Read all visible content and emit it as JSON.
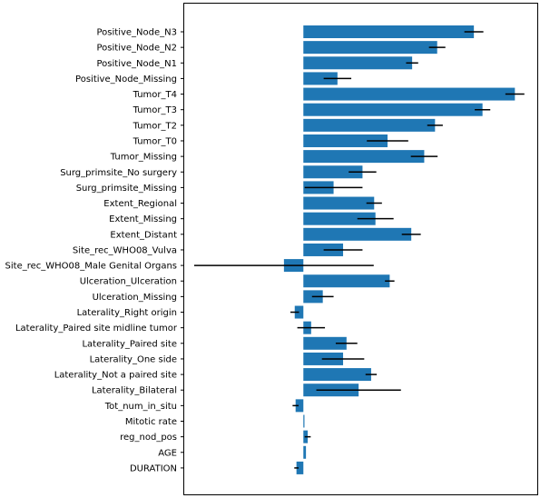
{
  "chart_data": {
    "type": "bar",
    "orientation": "horizontal",
    "title": "",
    "xlabel": "",
    "ylabel": "",
    "x_tick_labels_shown": false,
    "bar_color": "#1f77b4",
    "errorbar_color": "#000000",
    "xlim": [
      -2.76,
      5.44
    ],
    "categories": [
      "Positive_Node_N3",
      "Positive_Node_N2",
      "Positive_Node_N1",
      "Positive_Node_Missing",
      "Tumor_T4",
      "Tumor_T3",
      "Tumor_T2",
      "Tumor_T0",
      "Tumor_Missing",
      "Surg_primsite_No surgery",
      "Surg_primsite_Missing",
      "Extent_Regional",
      "Extent_Missing",
      "Extent_Distant",
      "Site_rec_WHO08_Vulva",
      "Site_rec_WHO08_Male Genital Organs",
      "Ulceration_Ulceration",
      "Ulceration_Missing",
      "Laterality_Right origin",
      "Laterality_Paired site midline tumor",
      "Laterality_Paired site",
      "Laterality_One side",
      "Laterality_Not a paired site",
      "Laterality_Bilateral",
      "Tot_num_in_situ",
      "Mitotic rate",
      "reg_nod_pos",
      "AGE",
      "DURATION"
    ],
    "values": [
      3.95,
      3.1,
      2.52,
      0.79,
      4.9,
      4.15,
      3.05,
      1.95,
      2.8,
      1.37,
      0.7,
      1.64,
      1.67,
      2.5,
      0.92,
      -0.45,
      2.0,
      0.45,
      -0.2,
      0.18,
      1.0,
      0.92,
      1.57,
      1.28,
      -0.18,
      0.01,
      0.1,
      0.06,
      -0.16
    ],
    "errors": [
      0.22,
      0.19,
      0.14,
      0.32,
      0.22,
      0.18,
      0.18,
      0.48,
      0.31,
      0.32,
      0.67,
      0.18,
      0.42,
      0.22,
      0.45,
      2.08,
      0.11,
      0.25,
      0.1,
      0.32,
      0.25,
      0.49,
      0.13,
      0.98,
      0.07,
      0.0,
      0.07,
      0.0,
      0.05
    ]
  }
}
